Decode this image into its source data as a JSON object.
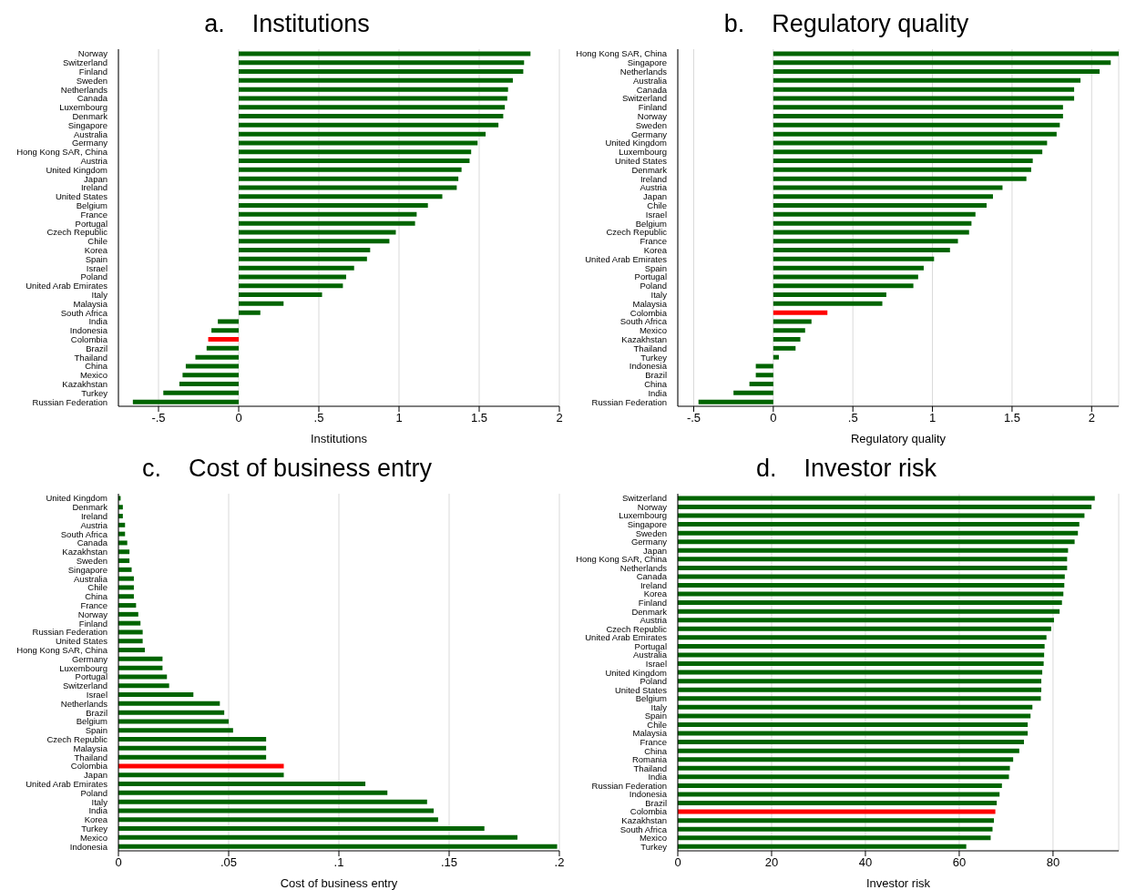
{
  "chart_data": [
    {
      "type": "bar",
      "orientation": "horizontal",
      "title": "a.    Institutions",
      "xlabel": "Institutions",
      "grid": "x",
      "categories": [
        "Norway",
        "Switzerland",
        "Finland",
        "Sweden",
        "Netherlands",
        "Canada",
        "Luxembourg",
        "Denmark",
        "Singapore",
        "Australia",
        "Germany",
        "Hong Kong SAR, China",
        "Austria",
        "United Kingdom",
        "Japan",
        "Ireland",
        "United States",
        "Belgium",
        "France",
        "Portugal",
        "Czech Republic",
        "Chile",
        "Korea",
        "Spain",
        "Israel",
        "Poland",
        "United Arab Emirates",
        "Italy",
        "Malaysia",
        "South Africa",
        "India",
        "Indonesia",
        "Colombia",
        "Brazil",
        "Thailand",
        "China",
        "Mexico",
        "Kazakhstan",
        "Turkey",
        "Russian Federation"
      ],
      "values": [
        1.82,
        1.78,
        1.775,
        1.71,
        1.68,
        1.675,
        1.66,
        1.65,
        1.62,
        1.54,
        1.49,
        1.45,
        1.44,
        1.39,
        1.37,
        1.36,
        1.27,
        1.18,
        1.11,
        1.1,
        0.98,
        0.94,
        0.82,
        0.8,
        0.72,
        0.67,
        0.65,
        0.52,
        0.28,
        0.135,
        -0.13,
        -0.17,
        -0.19,
        -0.2,
        -0.27,
        -0.33,
        -0.35,
        -0.37,
        -0.47,
        -0.66
      ],
      "colors": [
        "#006400",
        "#006400",
        "#006400",
        "#006400",
        "#006400",
        "#006400",
        "#006400",
        "#006400",
        "#006400",
        "#006400",
        "#006400",
        "#006400",
        "#006400",
        "#006400",
        "#006400",
        "#006400",
        "#006400",
        "#006400",
        "#006400",
        "#006400",
        "#006400",
        "#006400",
        "#006400",
        "#006400",
        "#006400",
        "#006400",
        "#006400",
        "#006400",
        "#006400",
        "#006400",
        "#006400",
        "#006400",
        "#ff0000",
        "#006400",
        "#006400",
        "#006400",
        "#006400",
        "#006400",
        "#006400",
        "#006400"
      ],
      "xlim": [
        -0.75,
        2
      ],
      "xticks": [
        {
          "value": -0.5,
          "label": "-.5"
        },
        0,
        {
          "value": 0.5,
          "label": ".5"
        },
        1,
        1.5,
        2
      ]
    },
    {
      "type": "bar",
      "orientation": "horizontal",
      "title": "b.    Regulatory quality",
      "xlabel": "Regulatory quality",
      "grid": "x",
      "categories": [
        "Hong Kong SAR, China",
        "Singapore",
        "Netherlands",
        "Australia",
        "Canada",
        "Switzerland",
        "Finland",
        "Norway",
        "Sweden",
        "Germany",
        "United Kingdom",
        "Luxembourg",
        "United States",
        "Denmark",
        "Ireland",
        "Austria",
        "Japan",
        "Chile",
        "Israel",
        "Belgium",
        "Czech Republic",
        "France",
        "Korea",
        "United Arab Emirates",
        "Spain",
        "Portugal",
        "Poland",
        "Italy",
        "Malaysia",
        "Colombia",
        "South Africa",
        "Mexico",
        "Kazakhstan",
        "Thailand",
        "Turkey",
        "Indonesia",
        "Brazil",
        "China",
        "India",
        "Russian Federation"
      ],
      "values": [
        2.17,
        2.12,
        2.05,
        1.93,
        1.89,
        1.89,
        1.82,
        1.82,
        1.8,
        1.78,
        1.72,
        1.69,
        1.63,
        1.62,
        1.59,
        1.44,
        1.38,
        1.34,
        1.27,
        1.245,
        1.23,
        1.16,
        1.11,
        1.01,
        0.945,
        0.91,
        0.88,
        0.71,
        0.685,
        0.34,
        0.24,
        0.2,
        0.17,
        0.14,
        0.035,
        -0.11,
        -0.11,
        -0.15,
        -0.25,
        -0.47
      ],
      "colors": [
        "#006400",
        "#006400",
        "#006400",
        "#006400",
        "#006400",
        "#006400",
        "#006400",
        "#006400",
        "#006400",
        "#006400",
        "#006400",
        "#006400",
        "#006400",
        "#006400",
        "#006400",
        "#006400",
        "#006400",
        "#006400",
        "#006400",
        "#006400",
        "#006400",
        "#006400",
        "#006400",
        "#006400",
        "#006400",
        "#006400",
        "#006400",
        "#006400",
        "#006400",
        "#ff0000",
        "#006400",
        "#006400",
        "#006400",
        "#006400",
        "#006400",
        "#006400",
        "#006400",
        "#006400",
        "#006400",
        "#006400"
      ],
      "xlim": [
        -0.6,
        2.17
      ],
      "xticks": [
        {
          "value": -0.5,
          "label": "-.5"
        },
        0,
        {
          "value": 0.5,
          "label": ".5"
        },
        1,
        1.5,
        2
      ]
    },
    {
      "type": "bar",
      "orientation": "horizontal",
      "title": "c.    Cost of business entry",
      "xlabel": "Cost of business entry",
      "grid": "x",
      "categories": [
        "United Kingdom",
        "Denmark",
        "Ireland",
        "Austria",
        "South Africa",
        "Canada",
        "Kazakhstan",
        "Sweden",
        "Singapore",
        "Australia",
        "Chile",
        "China",
        "France",
        "Norway",
        "Finland",
        "Russian Federation",
        "United States",
        "Hong Kong SAR, China",
        "Germany",
        "Luxembourg",
        "Portugal",
        "Switzerland",
        "Israel",
        "Netherlands",
        "Brazil",
        "Belgium",
        "Spain",
        "Czech Republic",
        "Malaysia",
        "Thailand",
        "Colombia",
        "Japan",
        "United Arab Emirates",
        "Poland",
        "Italy",
        "India",
        "Korea",
        "Turkey",
        "Mexico",
        "Indonesia"
      ],
      "values": [
        0.001,
        0.002,
        0.002,
        0.003,
        0.003,
        0.004,
        0.005,
        0.005,
        0.006,
        0.007,
        0.007,
        0.007,
        0.008,
        0.009,
        0.01,
        0.011,
        0.011,
        0.012,
        0.02,
        0.02,
        0.022,
        0.023,
        0.034,
        0.046,
        0.048,
        0.05,
        0.052,
        0.067,
        0.067,
        0.067,
        0.075,
        0.075,
        0.112,
        0.122,
        0.14,
        0.143,
        0.145,
        0.166,
        0.181,
        0.199
      ],
      "colors": [
        "#006400",
        "#006400",
        "#006400",
        "#006400",
        "#006400",
        "#006400",
        "#006400",
        "#006400",
        "#006400",
        "#006400",
        "#006400",
        "#006400",
        "#006400",
        "#006400",
        "#006400",
        "#006400",
        "#006400",
        "#006400",
        "#006400",
        "#006400",
        "#006400",
        "#006400",
        "#006400",
        "#006400",
        "#006400",
        "#006400",
        "#006400",
        "#006400",
        "#006400",
        "#006400",
        "#ff0000",
        "#006400",
        "#006400",
        "#006400",
        "#006400",
        "#006400",
        "#006400",
        "#006400",
        "#006400",
        "#006400"
      ],
      "xlim": [
        0,
        0.2
      ],
      "xticks": [
        0,
        {
          "value": 0.05,
          "label": ".05"
        },
        {
          "value": 0.1,
          "label": ".1"
        },
        {
          "value": 0.15,
          "label": ".15"
        },
        {
          "value": 0.2,
          "label": ".2"
        }
      ]
    },
    {
      "type": "bar",
      "orientation": "horizontal",
      "title": "d.    Investor risk",
      "xlabel": "Investor risk",
      "grid": "x",
      "categories": [
        "Switzerland",
        "Norway",
        "Luxembourg",
        "Singapore",
        "Sweden",
        "Germany",
        "Japan",
        "Hong Kong SAR, China",
        "Netherlands",
        "Canada",
        "Ireland",
        "Korea",
        "Finland",
        "Denmark",
        "Austria",
        "Czech Republic",
        "United Arab Emirates",
        "Portugal",
        "Australia",
        "Israel",
        "United Kingdom",
        "Poland",
        "United States",
        "Belgium",
        "Italy",
        "Spain",
        "Chile",
        "Malaysia",
        "France",
        "China",
        "Romania",
        "Thailand",
        "India",
        "Russian Federation",
        "Indonesia",
        "Brazil",
        "Colombia",
        "Kazakhstan",
        "South Africa",
        "Mexico",
        "Turkey"
      ],
      "values": [
        88.9,
        88.2,
        86.7,
        85.6,
        85.3,
        84.6,
        83.2,
        83,
        83,
        82.5,
        82.4,
        82.2,
        81.9,
        81.4,
        80.2,
        79.6,
        78.6,
        78.2,
        78.1,
        78,
        77.7,
        77.5,
        77.5,
        77.4,
        75.6,
        75.2,
        74.6,
        74.6,
        73.8,
        72.8,
        71.5,
        70.8,
        70.6,
        69.1,
        68.6,
        68,
        67.7,
        67.4,
        67.1,
        66.7,
        61.5
      ],
      "colors": [
        "#006400",
        "#006400",
        "#006400",
        "#006400",
        "#006400",
        "#006400",
        "#006400",
        "#006400",
        "#006400",
        "#006400",
        "#006400",
        "#006400",
        "#006400",
        "#006400",
        "#006400",
        "#006400",
        "#006400",
        "#006400",
        "#006400",
        "#006400",
        "#006400",
        "#006400",
        "#006400",
        "#006400",
        "#006400",
        "#006400",
        "#006400",
        "#006400",
        "#006400",
        "#006400",
        "#006400",
        "#006400",
        "#006400",
        "#006400",
        "#006400",
        "#006400",
        "#ff0000",
        "#006400",
        "#006400",
        "#006400",
        "#006400"
      ],
      "xlim": [
        0,
        94
      ],
      "xticks": [
        0,
        20,
        40,
        60,
        80
      ]
    }
  ]
}
